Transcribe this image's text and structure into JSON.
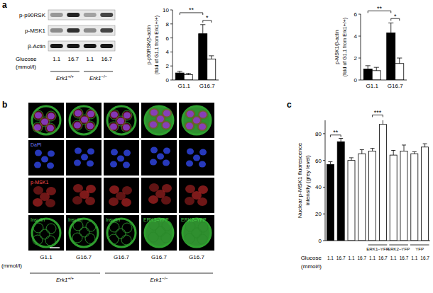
{
  "panels": [
    "a",
    "b",
    "c"
  ],
  "blot": {
    "rows": [
      {
        "label": "p-p90RSK",
        "intensity": [
          0.35,
          0.85,
          0.3,
          0.7
        ]
      },
      {
        "label": "p-MSK1",
        "intensity": [
          0.4,
          0.8,
          0.4,
          0.7
        ]
      },
      {
        "label": "β-Actin",
        "intensity": [
          0.9,
          0.9,
          0.9,
          0.9
        ]
      }
    ],
    "glucose_label": "Glucose",
    "glucose": [
      "1.1",
      "16.7",
      "1.1",
      "16.7"
    ],
    "unit": "(mmol/l)",
    "genotypes": [
      {
        "gene": "Erk1",
        "genotype": "+/+",
        "span": 2
      },
      {
        "gene": "Erk1",
        "genotype": "−/−",
        "span": 2
      }
    ]
  },
  "microscopy": {
    "tile_labels": [
      [
        null,
        null,
        null,
        null,
        null
      ],
      [
        "DaPI",
        null,
        null,
        null,
        null
      ],
      [
        "p-MSK1",
        null,
        null,
        null,
        null
      ],
      [
        "Insulin",
        "Insulin",
        "Insulin",
        "ERK1–YFP",
        "ERK2–YFP"
      ]
    ],
    "glucose": [
      "G1.1",
      "G16.7",
      "G16.7",
      "G16.7",
      "G16.7"
    ],
    "unit": "(mmol/l)",
    "genotypes": [
      {
        "gene": "Erk1",
        "genotype": "+/+",
        "span": 2
      },
      {
        "gene": "Erk1",
        "genotype": "−/−",
        "span": 3
      }
    ]
  },
  "chart_data": [
    {
      "type": "bar",
      "y_label": [
        "p-p90RSK/β-actin",
        "(fold of G1.1 from Erk1+/+)"
      ],
      "categories": [
        "G1.1",
        "G16.7"
      ],
      "series": [
        {
          "color": "#000000",
          "values": [
            1.0,
            6.6
          ],
          "errors": [
            0.25,
            1.3
          ]
        },
        {
          "color": "#ffffff",
          "values": [
            0.75,
            3.0
          ],
          "errors": [
            0.2,
            0.45
          ]
        }
      ],
      "ylim": [
        0,
        10
      ],
      "yticks": [
        0,
        2,
        4,
        6,
        8,
        10
      ],
      "annotations": [
        {
          "text": "**",
          "from": [
            0,
            0
          ],
          "to": [
            0,
            1
          ],
          "y": 9.6
        },
        {
          "text": "*",
          "from": [
            0,
            1
          ],
          "to": [
            1,
            1
          ],
          "y": 8.5
        }
      ]
    },
    {
      "type": "bar",
      "y_label": [
        "p-MSK1/β-actin",
        "(fold of G1.1 from Erk1+/+)"
      ],
      "categories": [
        "G1.1",
        "G16.7"
      ],
      "series": [
        {
          "color": "#000000",
          "values": [
            1.0,
            4.3
          ],
          "errors": [
            0.3,
            0.9
          ]
        },
        {
          "color": "#ffffff",
          "values": [
            0.85,
            1.5
          ],
          "errors": [
            0.3,
            0.5
          ]
        }
      ],
      "ylim": [
        0,
        6
      ],
      "yticks": [
        0,
        2,
        4,
        6
      ],
      "annotations": [
        {
          "text": "**",
          "from": [
            0,
            0
          ],
          "to": [
            0,
            1
          ],
          "y": 6.3
        },
        {
          "text": "*",
          "from": [
            0,
            1
          ],
          "to": [
            1,
            1
          ],
          "y": 5.6
        }
      ]
    },
    {
      "type": "bar",
      "y_label": [
        "Nuclear p-MSK1 fluorescence",
        "intensity (grey level)"
      ],
      "x_label": "Glucose",
      "x_unit": "(mmol/l)",
      "categories": [
        "1.1",
        "16.7",
        "1.1",
        "16.7",
        "1.1",
        "16.7",
        "1.1",
        "16.7",
        "1.1",
        "16.7"
      ],
      "groups": [
        {
          "label": null,
          "span": 2
        },
        {
          "label": null,
          "span": 2
        },
        {
          "label": "ERK1–YFP",
          "span": 2
        },
        {
          "label": "ERK2–YFP",
          "span": 2
        },
        {
          "label": "YFP",
          "span": 2
        }
      ],
      "series": [
        {
          "colors": [
            "#000000",
            "#000000",
            "#ffffff",
            "#ffffff",
            "#ffffff",
            "#ffffff",
            "#ffffff",
            "#ffffff",
            "#ffffff",
            "#ffffff"
          ],
          "values": [
            57,
            74,
            60,
            65,
            67,
            87,
            64,
            67,
            65,
            70
          ],
          "errors": [
            2,
            2.5,
            2,
            3,
            2,
            4,
            3.5,
            4.5,
            1.5,
            2.5
          ]
        }
      ],
      "ylim": [
        0,
        90
      ],
      "yticks": [
        0,
        20,
        40,
        60,
        80
      ],
      "annotations": [
        {
          "text": "**",
          "from": [
            0,
            0
          ],
          "to": [
            0,
            1
          ],
          "y": 79
        },
        {
          "text": "***",
          "from": [
            0,
            4
          ],
          "to": [
            0,
            5
          ],
          "y": 94
        }
      ]
    }
  ]
}
